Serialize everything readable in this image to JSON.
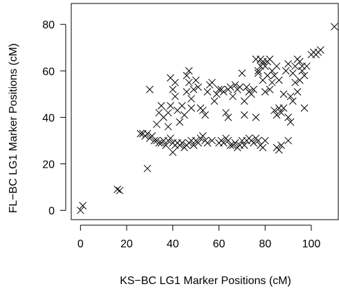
{
  "chart_data": {
    "type": "scatter",
    "xlabel": "KS−BC LG1 Marker Positions (cM)",
    "ylabel": "FL−BC LG1 Marker Positions (cM)",
    "xlim": [
      -4,
      112
    ],
    "ylim": [
      -4,
      89
    ],
    "x_ticks": [
      0,
      20,
      40,
      60,
      80,
      100
    ],
    "y_ticks": [
      0,
      20,
      40,
      60,
      80
    ],
    "grid": false,
    "marker": "x",
    "color": "#000000",
    "points": [
      [
        0,
        0
      ],
      [
        1,
        2
      ],
      [
        16,
        9
      ],
      [
        17,
        8.5
      ],
      [
        29,
        18
      ],
      [
        26,
        33
      ],
      [
        27,
        33
      ],
      [
        28,
        32
      ],
      [
        29,
        33
      ],
      [
        30,
        31
      ],
      [
        31,
        32
      ],
      [
        32,
        30
      ],
      [
        33,
        30
      ],
      [
        34,
        29
      ],
      [
        35,
        29
      ],
      [
        36,
        30
      ],
      [
        37,
        28
      ],
      [
        38,
        30
      ],
      [
        39,
        31
      ],
      [
        40,
        29
      ],
      [
        40,
        25
      ],
      [
        41,
        28
      ],
      [
        42,
        29
      ],
      [
        43,
        28
      ],
      [
        44,
        29
      ],
      [
        45,
        27
      ],
      [
        46,
        28
      ],
      [
        47,
        29
      ],
      [
        48,
        30
      ],
      [
        49,
        28
      ],
      [
        50,
        30
      ],
      [
        51,
        29
      ],
      [
        52,
        31
      ],
      [
        53,
        32
      ],
      [
        54,
        30
      ],
      [
        55,
        29
      ],
      [
        57,
        30
      ],
      [
        60,
        29
      ],
      [
        61,
        30
      ],
      [
        62,
        29
      ],
      [
        63,
        31
      ],
      [
        64,
        30
      ],
      [
        65,
        28
      ],
      [
        66,
        28
      ],
      [
        67,
        29
      ],
      [
        68,
        27
      ],
      [
        69,
        28
      ],
      [
        70,
        30
      ],
      [
        71,
        28
      ],
      [
        72,
        30
      ],
      [
        73,
        31
      ],
      [
        74,
        30
      ],
      [
        75,
        29
      ],
      [
        76,
        31
      ],
      [
        77,
        30
      ],
      [
        78,
        28
      ],
      [
        79,
        27
      ],
      [
        80,
        30
      ],
      [
        85,
        27
      ],
      [
        86,
        26
      ],
      [
        87,
        28
      ],
      [
        90,
        30
      ],
      [
        30,
        52
      ],
      [
        33,
        37
      ],
      [
        34,
        42
      ],
      [
        35,
        45
      ],
      [
        36,
        40
      ],
      [
        38,
        36
      ],
      [
        38,
        42
      ],
      [
        39,
        45
      ],
      [
        39,
        57
      ],
      [
        40,
        52
      ],
      [
        41,
        49
      ],
      [
        41,
        55
      ],
      [
        42,
        43
      ],
      [
        43,
        38
      ],
      [
        44,
        45
      ],
      [
        45,
        41
      ],
      [
        46,
        51
      ],
      [
        46,
        58
      ],
      [
        47,
        55
      ],
      [
        47,
        60
      ],
      [
        48,
        44
      ],
      [
        48,
        48
      ],
      [
        49,
        52
      ],
      [
        50,
        56
      ],
      [
        51,
        53
      ],
      [
        52,
        44
      ],
      [
        53,
        43
      ],
      [
        54,
        41
      ],
      [
        55,
        51
      ],
      [
        56,
        54
      ],
      [
        57,
        55
      ],
      [
        58,
        47
      ],
      [
        59,
        50
      ],
      [
        60,
        52
      ],
      [
        61,
        52
      ],
      [
        62,
        51
      ],
      [
        63,
        42
      ],
      [
        64,
        40
      ],
      [
        64,
        52
      ],
      [
        65,
        53
      ],
      [
        66,
        49
      ],
      [
        67,
        54
      ],
      [
        68,
        52
      ],
      [
        69,
        53
      ],
      [
        70,
        59
      ],
      [
        71,
        47
      ],
      [
        71,
        41
      ],
      [
        72,
        53
      ],
      [
        73,
        51
      ],
      [
        74,
        50
      ],
      [
        75,
        52
      ],
      [
        76,
        40
      ],
      [
        77,
        59
      ],
      [
        78,
        65
      ],
      [
        79,
        63
      ],
      [
        80,
        62
      ],
      [
        81,
        64
      ],
      [
        82,
        65
      ],
      [
        83,
        60
      ],
      [
        84,
        58
      ],
      [
        85,
        62
      ],
      [
        86,
        56
      ],
      [
        86,
        44
      ],
      [
        87,
        42
      ],
      [
        88,
        44
      ],
      [
        88,
        50
      ],
      [
        89,
        60
      ],
      [
        90,
        63
      ],
      [
        90,
        40
      ],
      [
        91,
        38
      ],
      [
        92,
        59
      ],
      [
        93,
        62
      ],
      [
        94,
        65
      ],
      [
        95,
        64
      ],
      [
        96,
        62
      ],
      [
        97,
        58
      ],
      [
        97,
        44
      ],
      [
        84,
        43
      ],
      [
        85,
        41
      ],
      [
        82,
        52
      ],
      [
        83,
        55
      ],
      [
        80,
        51
      ],
      [
        79,
        56
      ],
      [
        81,
        58
      ],
      [
        78,
        62
      ],
      [
        79,
        64
      ],
      [
        77,
        60
      ],
      [
        76,
        65
      ],
      [
        93,
        55
      ],
      [
        95,
        56
      ],
      [
        96,
        60
      ],
      [
        98,
        62
      ],
      [
        91,
        49
      ],
      [
        92,
        47
      ],
      [
        94,
        51
      ],
      [
        100,
        67
      ],
      [
        101,
        68
      ],
      [
        102,
        67
      ],
      [
        103,
        68
      ],
      [
        104,
        69
      ],
      [
        110,
        79
      ]
    ]
  }
}
